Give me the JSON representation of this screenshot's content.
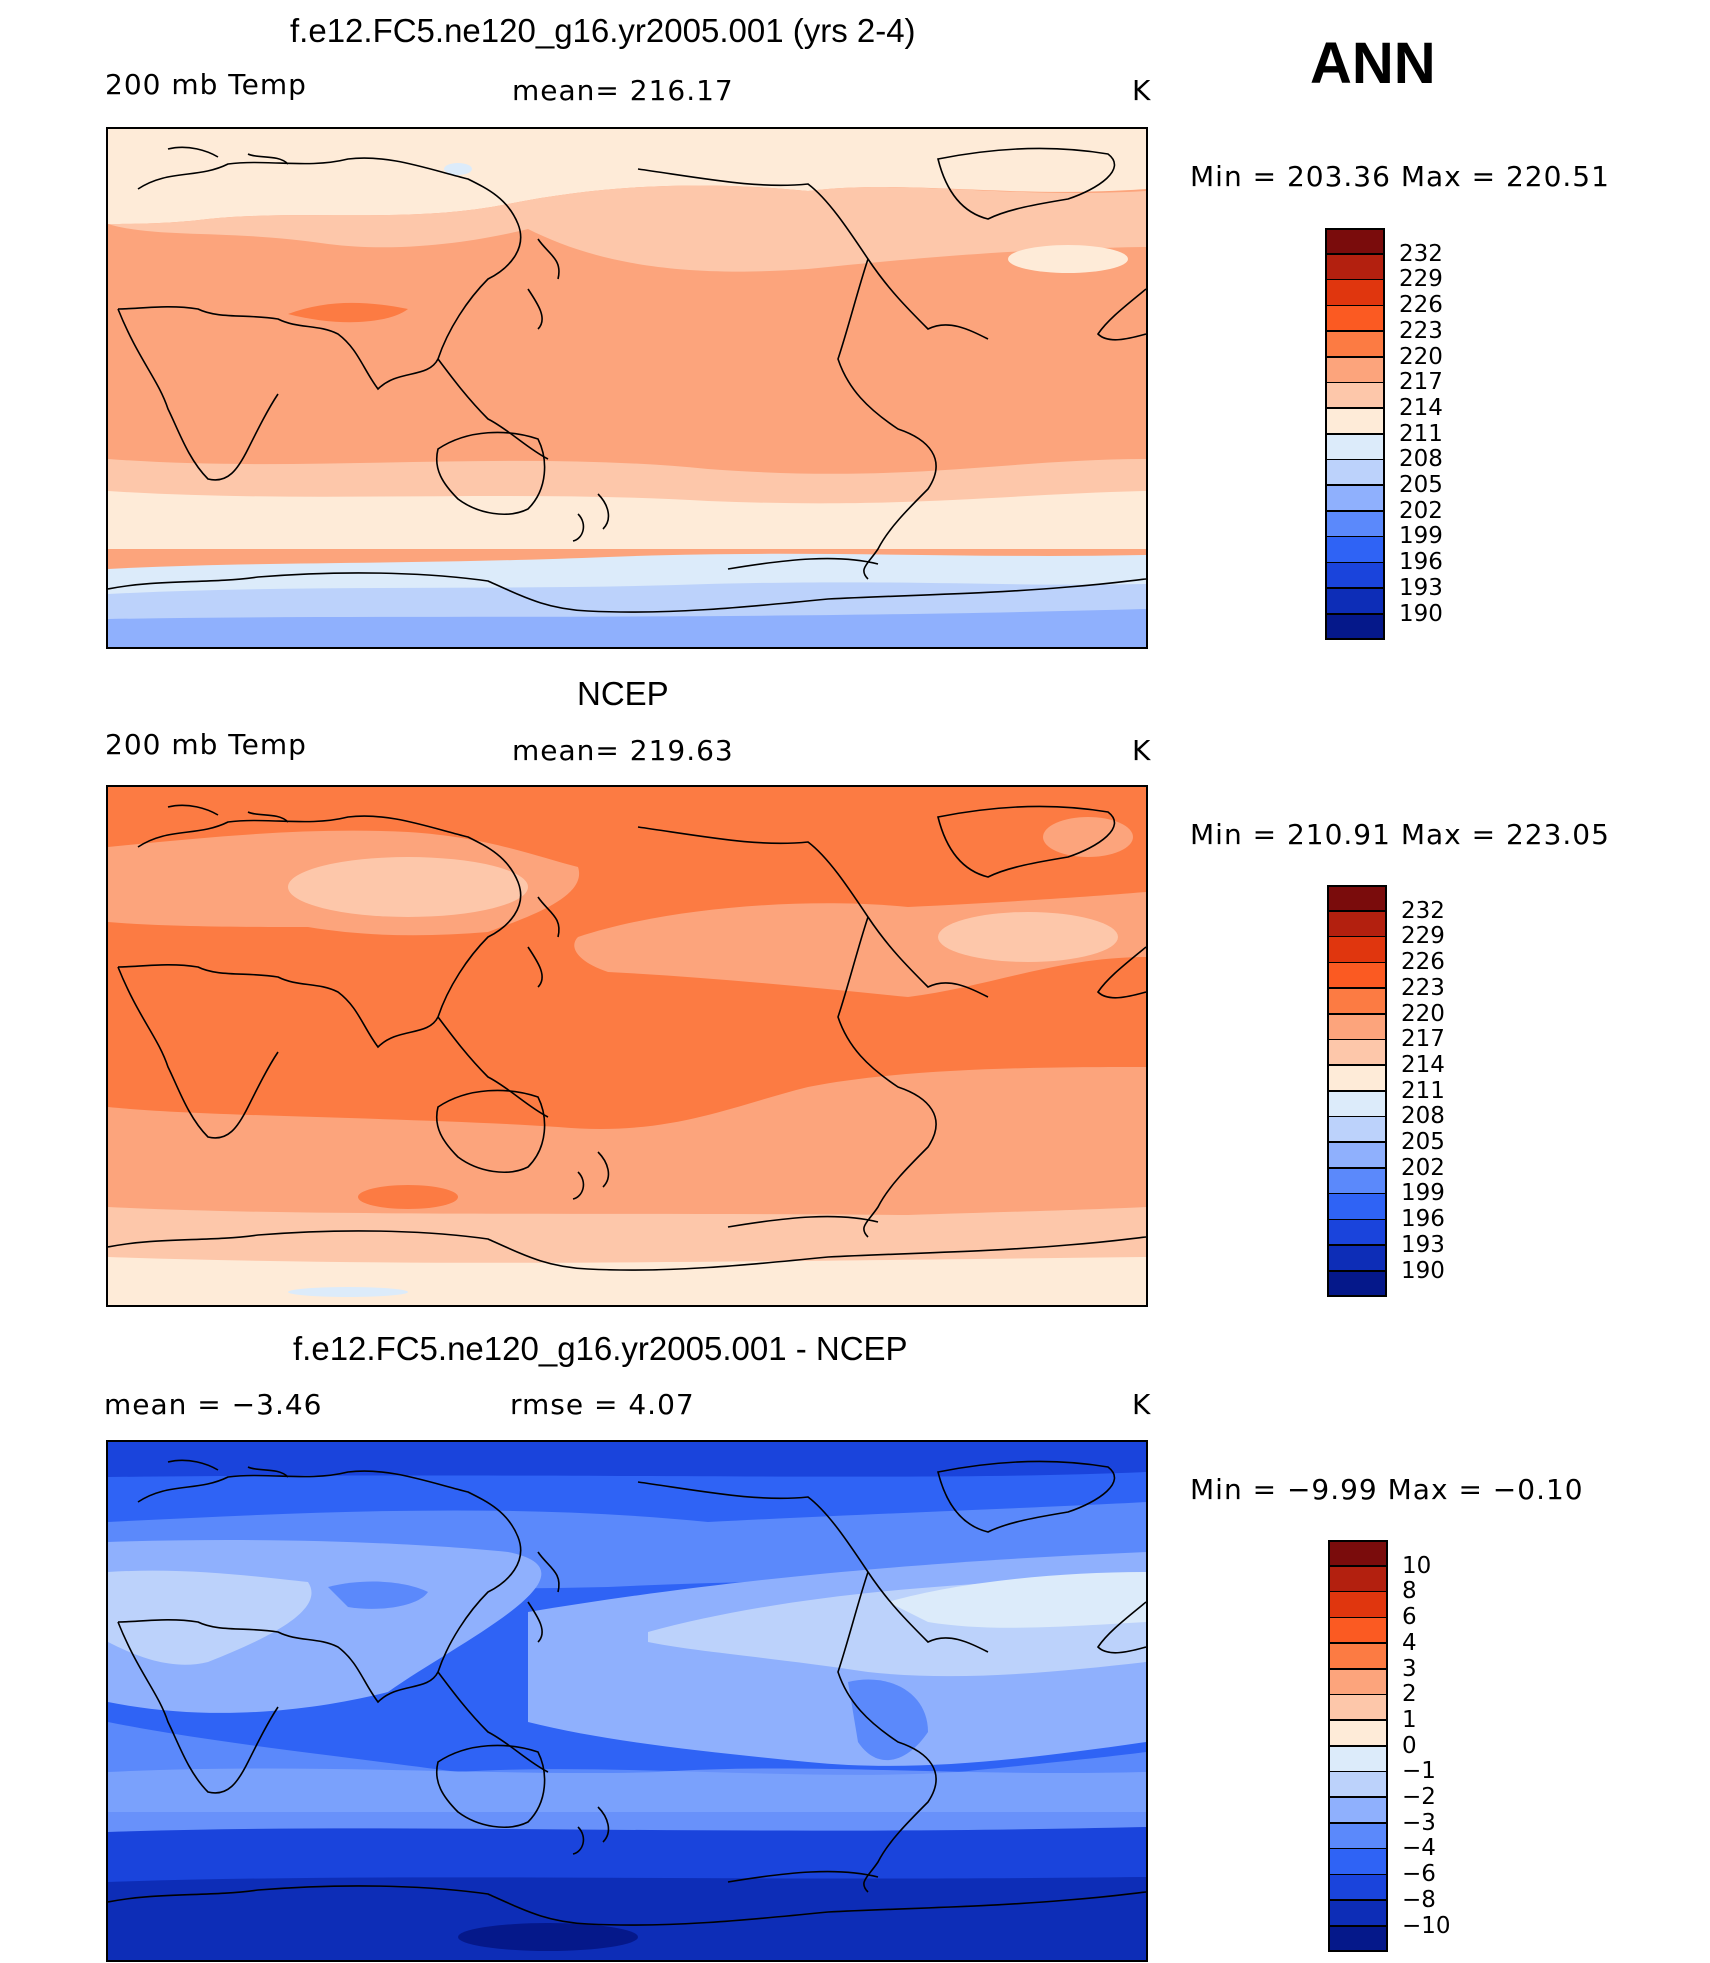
{
  "season": "ANN",
  "panels": [
    {
      "title": "f.e12.FC5.ne120_g16.yr2005.001 (yrs 2-4)",
      "left_label": "200 mb Temp",
      "center_label": "mean=  216.17",
      "units": "K",
      "minmax": "Min  =  203.36  Max  =  220.51",
      "levels": [
        "232",
        "229",
        "226",
        "223",
        "220",
        "217",
        "214",
        "211",
        "208",
        "205",
        "202",
        "199",
        "196",
        "193",
        "190"
      ]
    },
    {
      "title": "NCEP",
      "left_label": "200 mb Temp",
      "center_label": "mean=  219.63",
      "units": "K",
      "minmax": "Min  =  210.91  Max  =  223.05",
      "levels": [
        "232",
        "229",
        "226",
        "223",
        "220",
        "217",
        "214",
        "211",
        "208",
        "205",
        "202",
        "199",
        "196",
        "193",
        "190"
      ]
    },
    {
      "title": "f.e12.FC5.ne120_g16.yr2005.001 - NCEP",
      "left_label": "mean  =     −3.46",
      "center_label": "rmse  =     4.07",
      "units": "K",
      "minmax": "Min  =    −9.99  Max  =    −0.10",
      "levels": [
        "10",
        "8",
        "6",
        "4",
        "3",
        "2",
        "1",
        "0",
        "−1",
        "−2",
        "−3",
        "−4",
        "−6",
        "−8",
        "−10"
      ]
    }
  ],
  "colors": {
    "warm_to_cold": [
      "#7a0c0c",
      "#b3200f",
      "#e0360e",
      "#fb5a22",
      "#fc7b43",
      "#fca47c",
      "#fdc7aa",
      "#feebd8",
      "#dcebfa",
      "#bcd2fb",
      "#8fb0fd",
      "#5b89fb",
      "#2f63f5",
      "#1a44dc",
      "#0d2db7",
      "#05188a"
    ]
  }
}
